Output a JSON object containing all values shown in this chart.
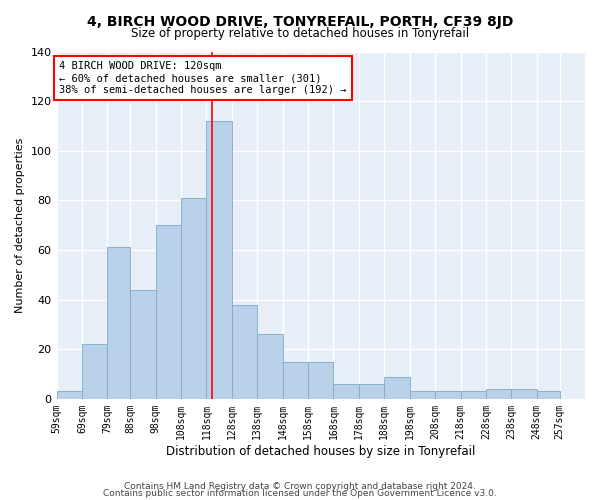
{
  "title": "4, BIRCH WOOD DRIVE, TONYREFAIL, PORTH, CF39 8JD",
  "subtitle": "Size of property relative to detached houses in Tonyrefail",
  "xlabel": "Distribution of detached houses by size in Tonyrefail",
  "ylabel": "Number of detached properties",
  "bar_color": "#b8d0e8",
  "bar_edge_color": "#7aabcc",
  "background_color": "#e8eef8",
  "grid_color": "#ffffff",
  "bin_labels": [
    "59sqm",
    "69sqm",
    "79sqm",
    "88sqm",
    "98sqm",
    "108sqm",
    "118sqm",
    "128sqm",
    "138sqm",
    "148sqm",
    "158sqm",
    "168sqm",
    "178sqm",
    "188sqm",
    "198sqm",
    "208sqm",
    "218sqm",
    "228sqm",
    "238sqm",
    "248sqm",
    "257sqm"
  ],
  "bar_heights": [
    3,
    22,
    61,
    44,
    70,
    81,
    112,
    38,
    26,
    15,
    15,
    6,
    6,
    9,
    3,
    3,
    3,
    4,
    4,
    3,
    0
  ],
  "property_label": "4 BIRCH WOOD DRIVE: 120sqm",
  "annotation_line1": "← 60% of detached houses are smaller (301)",
  "annotation_line2": "38% of semi-detached houses are larger (192) →",
  "vline_x": 120,
  "ylim": [
    0,
    140
  ],
  "yticks": [
    0,
    20,
    40,
    60,
    80,
    100,
    120,
    140
  ],
  "footnote1": "Contains HM Land Registry data © Crown copyright and database right 2024.",
  "footnote2": "Contains public sector information licensed under the Open Government Licence v3.0.",
  "bin_edges": [
    59,
    69,
    79,
    88,
    98,
    108,
    118,
    128,
    138,
    148,
    158,
    168,
    178,
    188,
    198,
    208,
    218,
    228,
    238,
    248,
    257,
    267
  ]
}
